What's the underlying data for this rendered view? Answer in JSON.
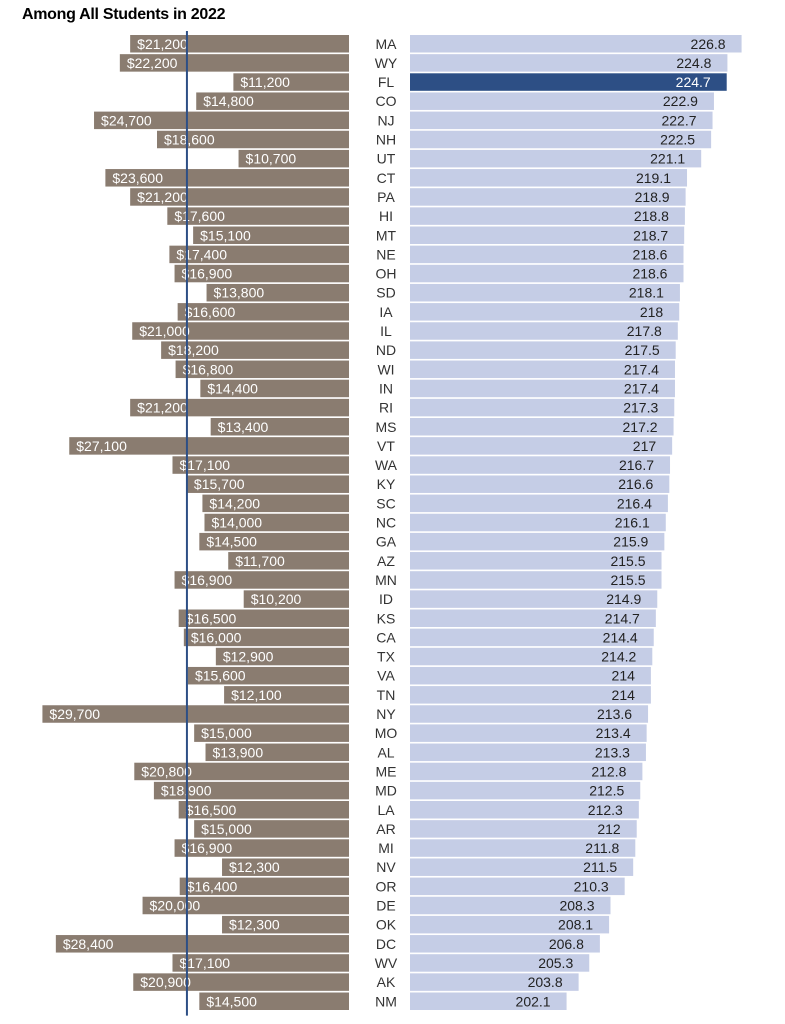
{
  "title": "Among All Students in 2022",
  "colors": {
    "spending_bar": "#8a7c70",
    "score_bar": "#c5cde6",
    "score_bar_highlight": "#2d4f85",
    "reference_line": "#2d4f85"
  },
  "chart_data": [
    {
      "type": "bar",
      "orientation": "horizontal",
      "direction": "right-to-left",
      "title": "",
      "categories": [
        "MA",
        "WY",
        "FL",
        "CO",
        "NJ",
        "NH",
        "UT",
        "CT",
        "PA",
        "HI",
        "MT",
        "NE",
        "OH",
        "SD",
        "IA",
        "IL",
        "ND",
        "WI",
        "IN",
        "RI",
        "MS",
        "VT",
        "WA",
        "KY",
        "SC",
        "NC",
        "GA",
        "AZ",
        "MN",
        "ID",
        "KS",
        "CA",
        "TX",
        "VA",
        "TN",
        "NY",
        "MO",
        "AL",
        "ME",
        "MD",
        "LA",
        "AR",
        "MI",
        "NV",
        "OR",
        "DE",
        "OK",
        "DC",
        "WV",
        "AK",
        "NM"
      ],
      "values": [
        21200,
        22200,
        11200,
        14800,
        24700,
        18600,
        10700,
        23600,
        21200,
        17600,
        15100,
        17400,
        16900,
        13800,
        16600,
        21000,
        18200,
        16800,
        14400,
        21200,
        13400,
        27100,
        17100,
        15700,
        14200,
        14000,
        14500,
        11700,
        16900,
        10200,
        16500,
        16000,
        12900,
        15600,
        12100,
        29700,
        15000,
        13900,
        20800,
        18900,
        16500,
        15000,
        16900,
        12300,
        16400,
        20000,
        12300,
        28400,
        17100,
        20900,
        14500
      ],
      "labels": [
        "$21,200",
        "$22,200",
        "$11,200",
        "$14,800",
        "$24,700",
        "$18,600",
        "$10,700",
        "$23,600",
        "$21,200",
        "$17,600",
        "$15,100",
        "$17,400",
        "$16,900",
        "$13,800",
        "$16,600",
        "$21,000",
        "$18,200",
        "$16,800",
        "$14,400",
        "$21,200",
        "$13,400",
        "$27,100",
        "$17,100",
        "$15,700",
        "$14,200",
        "$14,000",
        "$14,500",
        "$11,700",
        "$16,900",
        "$10,200",
        "$16,500",
        "$16,000",
        "$12,900",
        "$15,600",
        "$12,100",
        "$29,700",
        "$15,000",
        "$13,900",
        "$20,800",
        "$18,900",
        "$16,500",
        "$15,000",
        "$16,900",
        "$12,300",
        "$16,400",
        "$20,000",
        "$12,300",
        "$28,400",
        "$17,100",
        "$20,900",
        "$14,500"
      ],
      "xlim": [
        0,
        31000
      ],
      "reference_line_value": 15700
    },
    {
      "type": "bar",
      "orientation": "horizontal",
      "direction": "left-to-right",
      "title": "",
      "categories": [
        "MA",
        "WY",
        "FL",
        "CO",
        "NJ",
        "NH",
        "UT",
        "CT",
        "PA",
        "HI",
        "MT",
        "NE",
        "OH",
        "SD",
        "IA",
        "IL",
        "ND",
        "WI",
        "IN",
        "RI",
        "MS",
        "VT",
        "WA",
        "KY",
        "SC",
        "NC",
        "GA",
        "AZ",
        "MN",
        "ID",
        "KS",
        "CA",
        "TX",
        "VA",
        "TN",
        "NY",
        "MO",
        "AL",
        "ME",
        "MD",
        "LA",
        "AR",
        "MI",
        "NV",
        "OR",
        "DE",
        "OK",
        "DC",
        "WV",
        "AK",
        "NM"
      ],
      "values": [
        226.8,
        224.8,
        224.7,
        222.9,
        222.7,
        222.5,
        221.1,
        219.1,
        218.9,
        218.8,
        218.7,
        218.6,
        218.6,
        218.1,
        218,
        217.8,
        217.5,
        217.4,
        217.4,
        217.3,
        217.2,
        217,
        216.7,
        216.6,
        216.4,
        216.1,
        215.9,
        215.5,
        215.5,
        214.9,
        214.7,
        214.4,
        214.2,
        214,
        214,
        213.6,
        213.4,
        213.3,
        212.8,
        212.5,
        212.3,
        212,
        211.8,
        211.5,
        210.3,
        208.3,
        208.1,
        206.8,
        205.3,
        203.8,
        202.1
      ],
      "labels": [
        "226.8",
        "224.8",
        "224.7",
        "222.9",
        "222.7",
        "222.5",
        "221.1",
        "219.1",
        "218.9",
        "218.8",
        "218.7",
        "218.6",
        "218.6",
        "218.1",
        "218",
        "217.8",
        "217.5",
        "217.4",
        "217.4",
        "217.3",
        "217.2",
        "217",
        "216.7",
        "216.6",
        "216.4",
        "216.1",
        "215.9",
        "215.5",
        "215.5",
        "214.9",
        "214.7",
        "214.4",
        "214.2",
        "214",
        "214",
        "213.6",
        "213.4",
        "213.3",
        "212.8",
        "212.5",
        "212.3",
        "212",
        "211.8",
        "211.5",
        "210.3",
        "208.3",
        "208.1",
        "206.8",
        "205.3",
        "203.8",
        "202.1"
      ],
      "xlim": [
        180,
        227
      ],
      "highlight": "FL"
    }
  ]
}
